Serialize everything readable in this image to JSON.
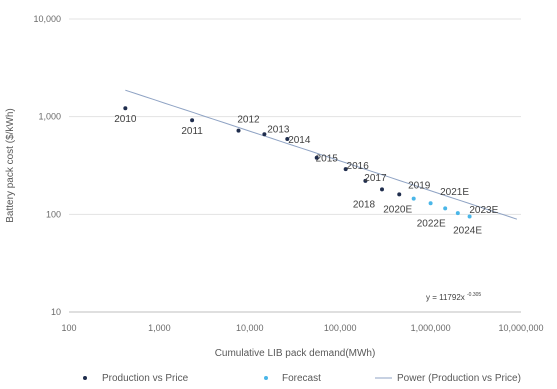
{
  "chart_data": {
    "type": "scatter",
    "x_scale": "log",
    "y_scale": "log",
    "xlim": [
      100,
      10000000
    ],
    "ylim": [
      10,
      10000
    ],
    "x_ticks": [
      "100",
      "1,000",
      "10,000",
      "100,000",
      "1,000,000",
      "10,000,000"
    ],
    "y_ticks": [
      "10",
      "100",
      "1,000",
      "10,000"
    ],
    "xlabel": "Cumulative LIB pack demand(MWh)",
    "ylabel": "Battery pack cost ($/kWh)",
    "grid": "horizontal",
    "legend": "bottom",
    "series": [
      {
        "name": "Production vs Price",
        "color": "#1f2d4d",
        "points": [
          {
            "label": "2010",
            "x": 420,
            "y": 1220
          },
          {
            "label": "2011",
            "x": 2300,
            "y": 920
          },
          {
            "label": "2012",
            "x": 7500,
            "y": 720
          },
          {
            "label": "2013",
            "x": 14500,
            "y": 660
          },
          {
            "label": "2014",
            "x": 26000,
            "y": 590
          },
          {
            "label": "2015",
            "x": 55000,
            "y": 380
          },
          {
            "label": "2016",
            "x": 115000,
            "y": 290
          },
          {
            "label": "2017",
            "x": 190000,
            "y": 220
          },
          {
            "label": "2018",
            "x": 290000,
            "y": 180
          },
          {
            "label": "2019",
            "x": 450000,
            "y": 160
          }
        ]
      },
      {
        "name": "Forecast",
        "color": "#4ab6e8",
        "points": [
          {
            "label": "2020E",
            "x": 650000,
            "y": 145
          },
          {
            "label": "2021E",
            "x": 1000000,
            "y": 130
          },
          {
            "label": "2022E",
            "x": 1450000,
            "y": 115
          },
          {
            "label": "2023E",
            "x": 2000000,
            "y": 103
          },
          {
            "label": "2024E",
            "x": 2700000,
            "y": 95
          }
        ]
      }
    ],
    "trendline": {
      "name": "Power (Production vs Price)",
      "color": "#8fa3c4",
      "coef": 11792,
      "exponent": -0.305,
      "x_range": [
        420,
        9000000
      ],
      "equation": "y = 11792x",
      "equation_exp": "-0.305"
    }
  }
}
